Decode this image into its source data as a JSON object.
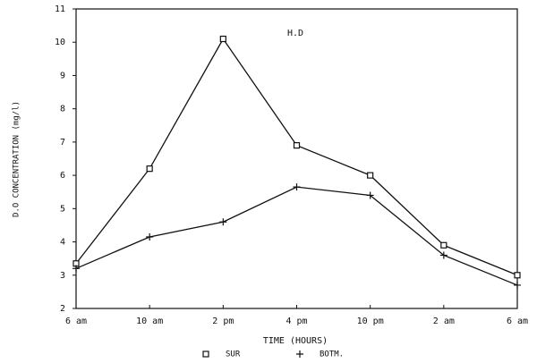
{
  "chart_data": {
    "type": "line",
    "annotation": "H.D",
    "x_label": "TIME (HOURS)",
    "y_label": "D.O CONCENTRATION (mg/l)",
    "categories": [
      "6 am",
      "10 am",
      "2 pm",
      "4 pm",
      "10 pm",
      "2 am",
      "6 am"
    ],
    "series": [
      {
        "name": "SUR",
        "color": "#111111",
        "marker": "square",
        "values": [
          3.35,
          6.2,
          10.1,
          6.9,
          6.0,
          3.9,
          3.0
        ]
      },
      {
        "name": "BOTM.",
        "color": "#111111",
        "marker": "plus",
        "values": [
          3.2,
          4.15,
          4.6,
          5.65,
          5.4,
          3.6,
          2.7
        ]
      }
    ],
    "ylim": [
      2,
      11
    ],
    "yticks": [
      2,
      3,
      4,
      5,
      6,
      7,
      8,
      9,
      10,
      11
    ],
    "grid": false
  }
}
